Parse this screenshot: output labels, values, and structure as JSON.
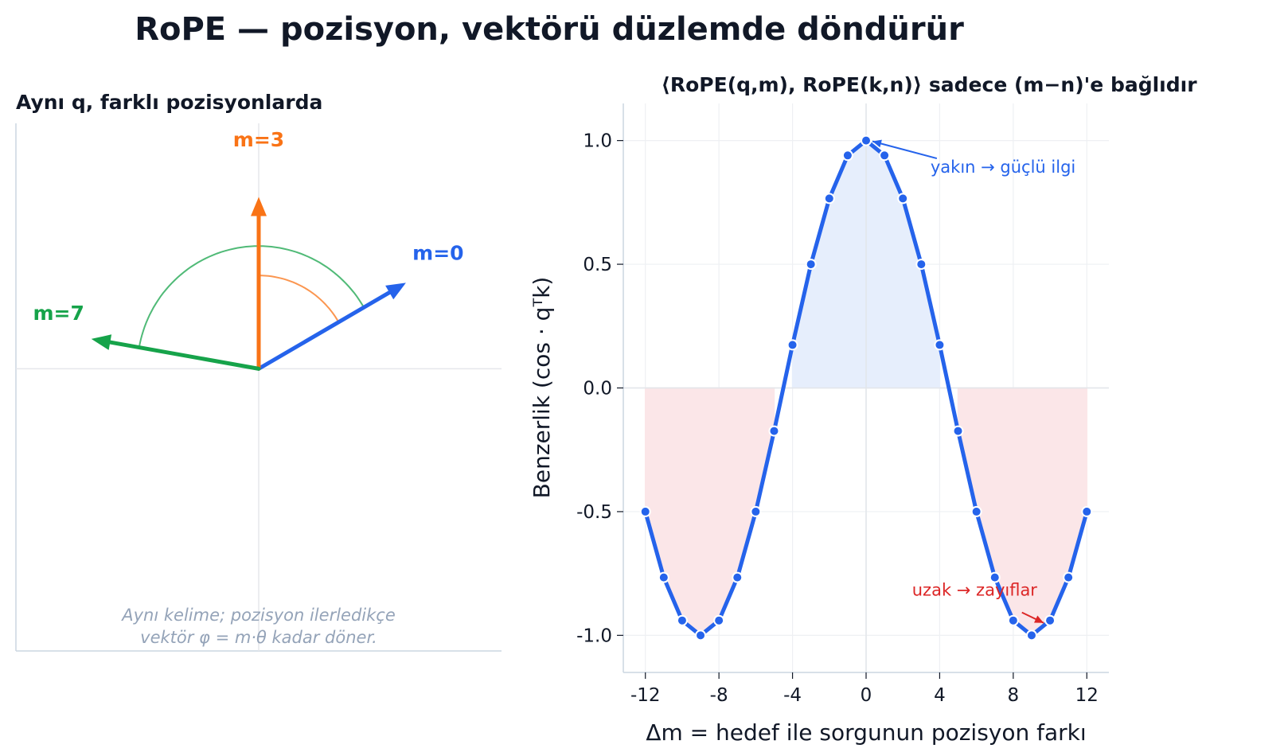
{
  "title": "RoPE  —  pozisyon, vektörü düzlemde döndürür",
  "colors": {
    "blue": "#2563eb",
    "orange": "#f97316",
    "green": "#16a34a",
    "red": "#dc2626",
    "pos_fill": "#e6eefc",
    "neg_fill": "#fbe6e8",
    "note": "#94a3b8"
  },
  "chart_data": [
    {
      "type": "vector-diagram",
      "title": "Aynı q, farklı pozisyonlarda",
      "xlim": [
        -1.0,
        1.0
      ],
      "ylim": [
        -1.15,
        1.0
      ],
      "vectors": [
        {
          "label": "m=0",
          "angle_deg": 30,
          "length": 0.7,
          "color": "#2563eb"
        },
        {
          "label": "m=3",
          "angle_deg": 90,
          "length": 0.7,
          "color": "#f97316"
        },
        {
          "label": "m=7",
          "angle_deg": 170,
          "length": 0.7,
          "color": "#16a34a"
        }
      ],
      "arcs": [
        {
          "from_deg": 30,
          "to_deg": 90,
          "radius": 0.38,
          "color": "#f97316"
        },
        {
          "from_deg": 30,
          "to_deg": 170,
          "radius": 0.5,
          "color": "#16a34a"
        }
      ],
      "note": [
        "Aynı kelime; pozisyon ilerledikçe",
        "vektör φ = m·θ kadar döner."
      ]
    },
    {
      "type": "line",
      "title": "⟨RoPE(q,m), RoPE(k,n)⟩ sadece (m−n)'e bağlıdır",
      "xlabel": "Δm  =  hedef ile sorgunun pozisyon farkı",
      "ylabel": "Benzerlik (cos · qᵀk)",
      "xlim": [
        -13.2,
        13.2
      ],
      "ylim": [
        -1.15,
        1.15
      ],
      "xticks": [
        -12,
        -8,
        -4,
        0,
        4,
        8,
        12
      ],
      "yticks": [
        -1.0,
        -0.5,
        0.0,
        0.5,
        1.0
      ],
      "ytick_labels": [
        "-1.0",
        "-0.5",
        "0.0",
        "0.5",
        "1.0"
      ],
      "grid": true,
      "series": [
        {
          "x": [
            -12,
            -11,
            -10,
            -9,
            -8,
            -7,
            -6,
            -5,
            -4,
            -3,
            -2,
            -1,
            0,
            1,
            2,
            3,
            4,
            5,
            6,
            7,
            8,
            9,
            10,
            11,
            12
          ],
          "y": [
            -0.5,
            -0.766,
            -0.94,
            -1.0,
            -0.94,
            -0.766,
            -0.5,
            -0.174,
            0.174,
            0.5,
            0.766,
            0.94,
            1.0,
            0.94,
            0.766,
            0.5,
            0.174,
            -0.174,
            -0.5,
            -0.766,
            -0.94,
            -1.0,
            -0.94,
            -0.766,
            -0.5
          ],
          "color": "#2563eb"
        }
      ],
      "annotations": [
        {
          "text": "yakın → güçlü ilgi",
          "point": [
            0,
            1.0
          ],
          "text_at": [
            3.5,
            0.87
          ],
          "color": "#2563eb"
        },
        {
          "text": "uzak → zayıflar",
          "point": [
            10,
            -0.94
          ],
          "text_at": [
            2.5,
            -0.84
          ],
          "color": "#dc2626"
        }
      ]
    }
  ]
}
